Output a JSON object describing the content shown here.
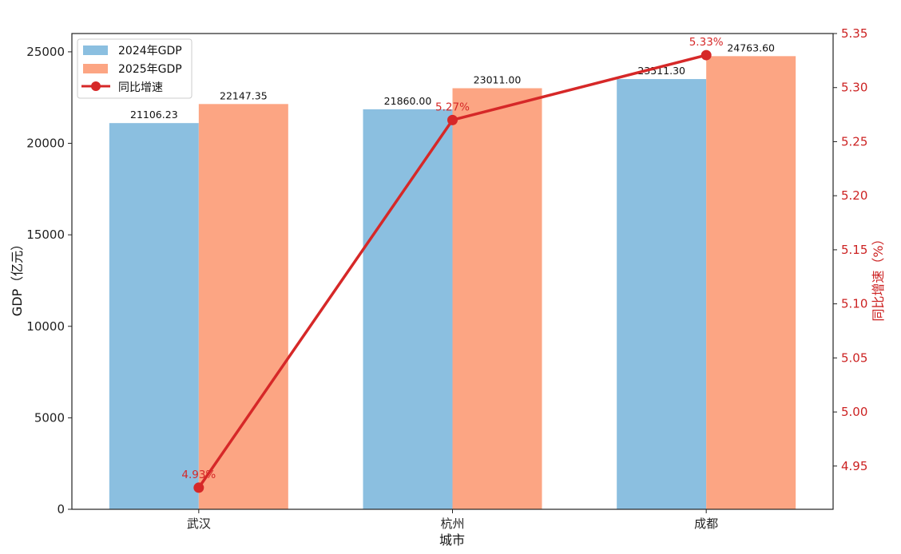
{
  "chart_data": {
    "type": "bar",
    "categories": [
      "武汉",
      "杭州",
      "成都"
    ],
    "series": [
      {
        "name": "2024年GDP",
        "values": [
          21106.23,
          21860.0,
          23511.3
        ],
        "color": "#8bbfe0"
      },
      {
        "name": "2025年GDP",
        "values": [
          22147.35,
          23011.0,
          24763.6
        ],
        "color": "#fca583"
      }
    ],
    "bar_value_labels": [
      [
        "21106.23",
        "21860.00",
        "23511.30"
      ],
      [
        "22147.35",
        "23011.00",
        "24763.60"
      ]
    ],
    "line_series": {
      "name": "同比增速",
      "values": [
        4.93,
        5.27,
        5.33
      ],
      "labels": [
        "4.93%",
        "5.27%",
        "5.33%"
      ],
      "color": "#d62828",
      "axis": "right"
    },
    "xlabel": "城市",
    "ylabel": "GDP（亿元）",
    "ylabel_right": "同比增速（%）",
    "ylim": [
      0,
      26000
    ],
    "yticks": [
      0,
      5000,
      10000,
      15000,
      20000,
      25000
    ],
    "ytick_labels": [
      "0",
      "5000",
      "10000",
      "15000",
      "20000",
      "25000"
    ],
    "ylim_right": [
      4.91,
      5.35
    ],
    "yticks_right": [
      4.95,
      5.0,
      5.05,
      5.1,
      5.15,
      5.2,
      5.25,
      5.3,
      5.35
    ],
    "ytick_labels_right": [
      "4.95",
      "5.00",
      "5.05",
      "5.10",
      "5.15",
      "5.20",
      "5.25",
      "5.30",
      "5.35"
    ],
    "legend": {
      "position": "top-left",
      "entries": [
        "2024年GDP",
        "2025年GDP",
        "同比增速"
      ]
    },
    "grid": false
  }
}
